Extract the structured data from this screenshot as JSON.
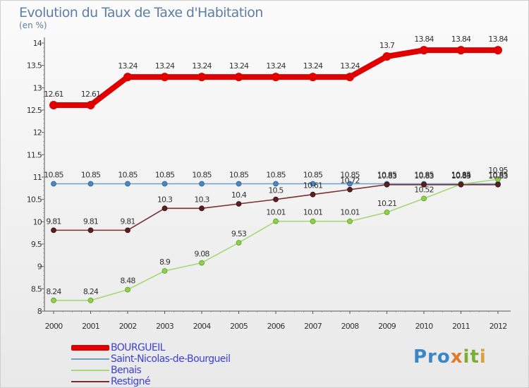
{
  "title": "Evolution du Taux de Taxe d'Habitation",
  "subtitle": "(en %)",
  "logo": {
    "text": "Proxiti",
    "parts": [
      "Pro",
      "x",
      "it",
      "i"
    ]
  },
  "chart_data": {
    "type": "line",
    "categories": [
      "2000",
      "2001",
      "2002",
      "2003",
      "2004",
      "2005",
      "2006",
      "2007",
      "2008",
      "2009",
      "2010",
      "2011",
      "2012"
    ],
    "ylim": [
      8,
      14
    ],
    "y_ticks": [
      "8",
      "8.5",
      "9",
      "9.5",
      "10",
      "10.5",
      "11",
      "11.5",
      "12",
      "12.5",
      "13",
      "13.5",
      "14"
    ],
    "grid": false,
    "legend_position": "bottom-left",
    "series": [
      {
        "name": "BOURGUEIL",
        "color": "#e00000",
        "values": [
          12.61,
          12.61,
          13.24,
          13.24,
          13.24,
          13.24,
          13.24,
          13.24,
          13.24,
          13.7,
          13.84,
          13.84,
          13.84
        ],
        "labels": [
          "12.61",
          "12.61",
          "13.24",
          "13.24",
          "13.24",
          "13.24",
          "13.24",
          "13.24",
          "13.24",
          "13.7",
          "13.84",
          "13.84",
          "13.84"
        ]
      },
      {
        "name": "Saint-Nicolas-de-Bourgueil",
        "color": "#6f9fcc",
        "values": [
          10.85,
          10.85,
          10.85,
          10.85,
          10.85,
          10.85,
          10.85,
          10.85,
          10.85,
          10.85,
          10.85,
          10.85,
          10.85
        ],
        "labels": [
          "10.85",
          "10.85",
          "10.85",
          "10.85",
          "10.85",
          "10.85",
          "10.85",
          "10.85",
          "10.85",
          "10.85",
          "10.85",
          "10.85",
          "10.85"
        ]
      },
      {
        "name": "Benais",
        "color": "#a6d878",
        "values": [
          8.24,
          8.24,
          8.48,
          8.9,
          9.08,
          9.53,
          10.01,
          10.01,
          10.01,
          10.21,
          10.52,
          10.84,
          10.95
        ],
        "labels": [
          "8.24",
          "8.24",
          "8.48",
          "8.9",
          "9.08",
          "9.53",
          "10.01",
          "10.01",
          "10.01",
          "10.21",
          "10.52",
          "10.84",
          "10.95"
        ]
      },
      {
        "name": "Restigné",
        "color": "#7a3030",
        "values": [
          9.81,
          9.81,
          9.81,
          10.3,
          10.3,
          10.4,
          10.5,
          10.61,
          10.72,
          10.83,
          10.83,
          10.83,
          10.83
        ],
        "labels": [
          "9.81",
          "9.81",
          "9.81",
          "10.3",
          "10.3",
          "10.4",
          "10.5",
          "10.61",
          "10.72",
          "10.83",
          "10.83",
          "10.83",
          "10.83"
        ]
      }
    ]
  }
}
